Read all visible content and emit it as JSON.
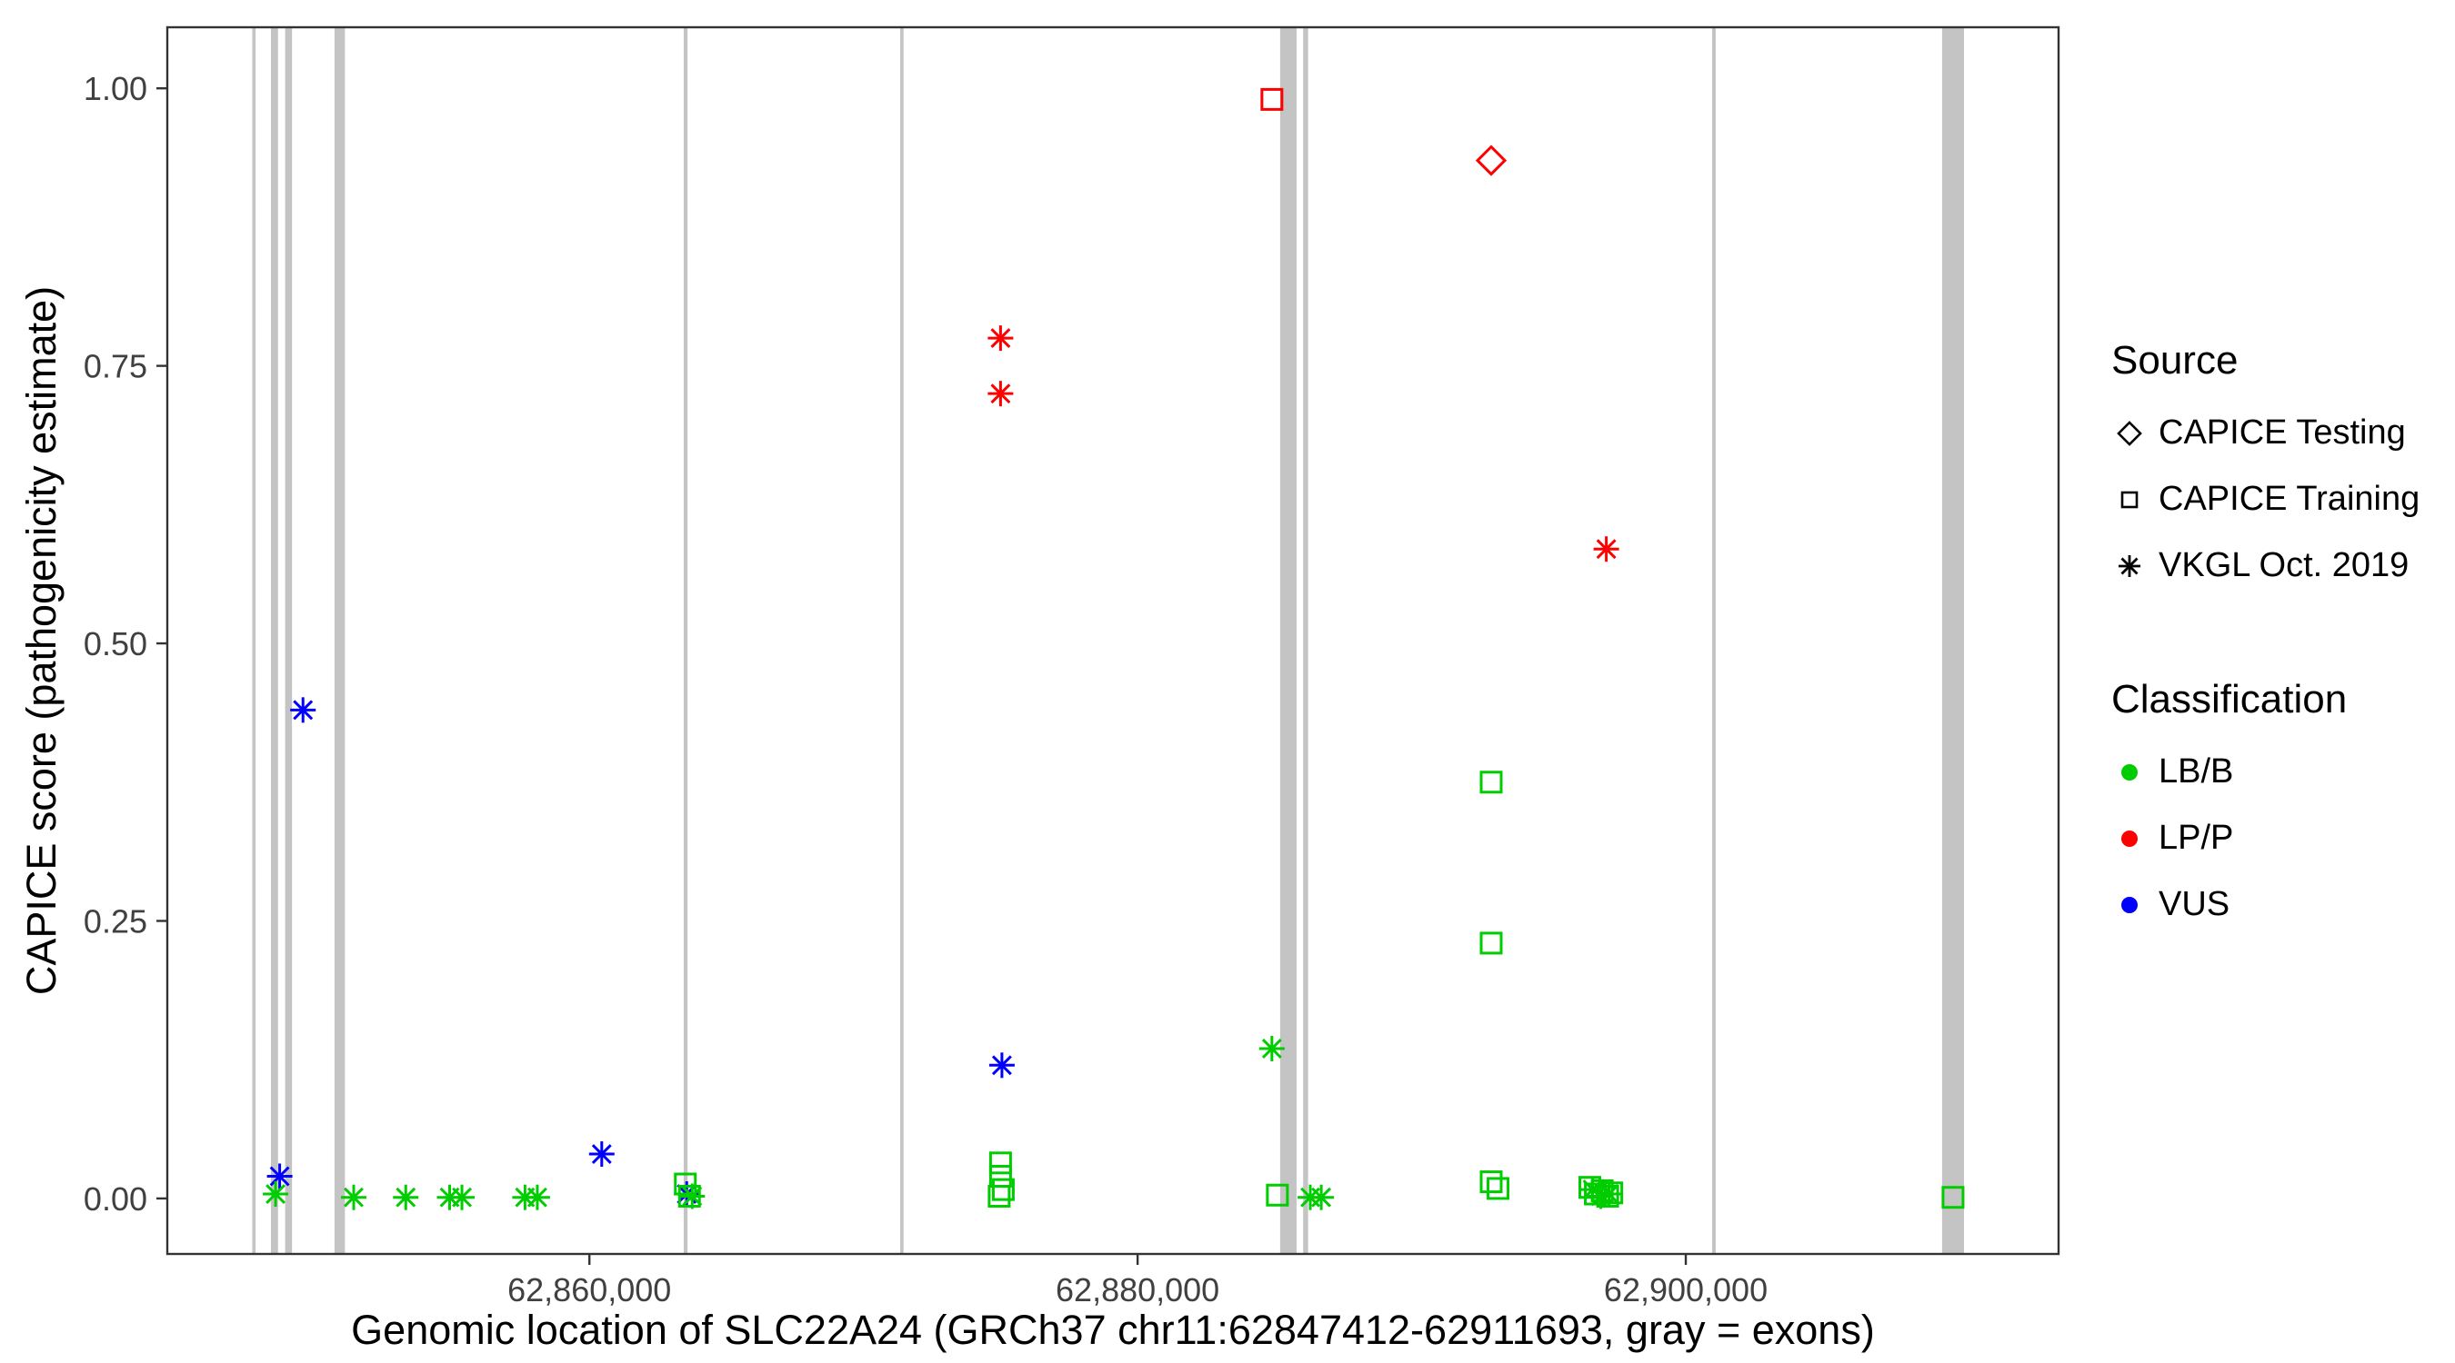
{
  "figure": {
    "xlabel": "Genomic location of SLC22A24 (GRCh37 chr11:62847412-62911693, gray = exons)",
    "ylabel": "CAPICE score (pathogenicity estimate)"
  },
  "legend": {
    "source": {
      "title": "Source",
      "items": [
        {
          "label": "CAPICE Testing",
          "shape": "diamond"
        },
        {
          "label": "CAPICE Training",
          "shape": "square"
        },
        {
          "label": "VKGL Oct. 2019",
          "shape": "asterisk"
        }
      ]
    },
    "classification": {
      "title": "Classification",
      "items": [
        {
          "label": "LB/B",
          "color_key": "lbb"
        },
        {
          "label": "LP/P",
          "color_key": "lpp"
        },
        {
          "label": "VUS",
          "color_key": "vus"
        }
      ]
    }
  },
  "chart_data": {
    "type": "scatter",
    "title": "",
    "xlabel": "Genomic location of SLC22A24 (GRCh37 chr11:62847412-62911693, gray = exons)",
    "ylabel": "CAPICE score (pathogenicity estimate)",
    "gene_region": {
      "gene": "SLC22A24",
      "assembly": "GRCh37",
      "chromosome": "chr11",
      "start": 62847412,
      "end": 62911693,
      "note": "gray = exons"
    },
    "x_domain": [
      62844600,
      62913600
    ],
    "y_domain": [
      -0.05,
      1.055
    ],
    "x_ticks": [
      {
        "value": 62860000,
        "label": "62,860,000"
      },
      {
        "value": 62880000,
        "label": "62,880,000"
      },
      {
        "value": 62900000,
        "label": "62,900,000"
      }
    ],
    "y_ticks": [
      {
        "value": 0.0,
        "label": "0.00"
      },
      {
        "value": 0.25,
        "label": "0.25"
      },
      {
        "value": 0.5,
        "label": "0.50"
      },
      {
        "value": 0.75,
        "label": "0.75"
      },
      {
        "value": 1.0,
        "label": "1.00"
      }
    ],
    "legend_position": "right",
    "grid": false,
    "exon_color": "#C4C4C4",
    "colors": {
      "lbb": "#00CD00",
      "lpp": "#FF0000",
      "vus": "#0000FF"
    },
    "shapes": {
      "testing": "diamond",
      "training": "square",
      "vkgl": "asterisk"
    },
    "source_labels": {
      "testing": "CAPICE Testing",
      "training": "CAPICE Training",
      "vkgl": "VKGL Oct. 2019"
    },
    "class_labels": {
      "lbb": "LB/B",
      "lpp": "LP/P",
      "vus": "VUS"
    },
    "exons": [
      {
        "start": 62847700,
        "end": 62847820
      },
      {
        "start": 62848380,
        "end": 62848640
      },
      {
        "start": 62848900,
        "end": 62849150
      },
      {
        "start": 62850700,
        "end": 62851080
      },
      {
        "start": 62863440,
        "end": 62863580
      },
      {
        "start": 62871340,
        "end": 62871460
      },
      {
        "start": 62885200,
        "end": 62885800
      },
      {
        "start": 62886040,
        "end": 62886220
      },
      {
        "start": 62900960,
        "end": 62901090
      },
      {
        "start": 62909350,
        "end": 62910150
      }
    ],
    "points": [
      {
        "x": 62848700,
        "y": 0.02,
        "source": "vkgl",
        "class": "vus"
      },
      {
        "x": 62849550,
        "y": 0.44,
        "source": "vkgl",
        "class": "vus"
      },
      {
        "x": 62860450,
        "y": 0.04,
        "source": "vkgl",
        "class": "vus"
      },
      {
        "x": 62875050,
        "y": 0.12,
        "source": "vkgl",
        "class": "vus"
      },
      {
        "x": 62863550,
        "y": 0.004,
        "source": "vkgl",
        "class": "vus"
      },
      {
        "x": 62875000,
        "y": 0.775,
        "source": "vkgl",
        "class": "lpp"
      },
      {
        "x": 62875000,
        "y": 0.725,
        "source": "vkgl",
        "class": "lpp"
      },
      {
        "x": 62897100,
        "y": 0.585,
        "source": "vkgl",
        "class": "lpp"
      },
      {
        "x": 62848550,
        "y": 0.004,
        "source": "vkgl",
        "class": "lbb"
      },
      {
        "x": 62851400,
        "y": 0.001,
        "source": "vkgl",
        "class": "lbb"
      },
      {
        "x": 62853300,
        "y": 0.001,
        "source": "vkgl",
        "class": "lbb"
      },
      {
        "x": 62854900,
        "y": 0.001,
        "source": "vkgl",
        "class": "lbb"
      },
      {
        "x": 62855350,
        "y": 0.001,
        "source": "vkgl",
        "class": "lbb"
      },
      {
        "x": 62857650,
        "y": 0.001,
        "source": "vkgl",
        "class": "lbb"
      },
      {
        "x": 62858100,
        "y": 0.001,
        "source": "vkgl",
        "class": "lbb"
      },
      {
        "x": 62863750,
        "y": 0.002,
        "source": "vkgl",
        "class": "lbb"
      },
      {
        "x": 62884900,
        "y": 0.135,
        "source": "vkgl",
        "class": "lbb"
      },
      {
        "x": 62886300,
        "y": 0.001,
        "source": "vkgl",
        "class": "lbb"
      },
      {
        "x": 62886700,
        "y": 0.001,
        "source": "vkgl",
        "class": "lbb"
      },
      {
        "x": 62896600,
        "y": 0.008,
        "source": "vkgl",
        "class": "lbb"
      },
      {
        "x": 62896900,
        "y": 0.002,
        "source": "vkgl",
        "class": "lbb"
      },
      {
        "x": 62897200,
        "y": 0.004,
        "source": "vkgl",
        "class": "lbb"
      },
      {
        "x": 62884900,
        "y": 0.99,
        "source": "training",
        "class": "lpp"
      },
      {
        "x": 62875000,
        "y": 0.032,
        "source": "training",
        "class": "lbb"
      },
      {
        "x": 62875000,
        "y": 0.02,
        "source": "training",
        "class": "lbb"
      },
      {
        "x": 62875100,
        "y": 0.008,
        "source": "training",
        "class": "lbb"
      },
      {
        "x": 62874950,
        "y": 0.002,
        "source": "training",
        "class": "lbb"
      },
      {
        "x": 62885100,
        "y": 0.003,
        "source": "training",
        "class": "lbb"
      },
      {
        "x": 62892900,
        "y": 0.375,
        "source": "training",
        "class": "lbb"
      },
      {
        "x": 62892900,
        "y": 0.23,
        "source": "training",
        "class": "lbb"
      },
      {
        "x": 62892900,
        "y": 0.015,
        "source": "training",
        "class": "lbb"
      },
      {
        "x": 62893150,
        "y": 0.009,
        "source": "training",
        "class": "lbb"
      },
      {
        "x": 62863500,
        "y": 0.013,
        "source": "training",
        "class": "lbb"
      },
      {
        "x": 62863650,
        "y": 0.002,
        "source": "training",
        "class": "lbb"
      },
      {
        "x": 62896500,
        "y": 0.01,
        "source": "training",
        "class": "lbb"
      },
      {
        "x": 62896700,
        "y": 0.004,
        "source": "training",
        "class": "lbb"
      },
      {
        "x": 62896950,
        "y": 0.007,
        "source": "training",
        "class": "lbb"
      },
      {
        "x": 62897150,
        "y": 0.002,
        "source": "training",
        "class": "lbb"
      },
      {
        "x": 62897300,
        "y": 0.005,
        "source": "training",
        "class": "lbb"
      },
      {
        "x": 62909750,
        "y": 0.001,
        "source": "training",
        "class": "lbb"
      },
      {
        "x": 62892900,
        "y": 0.935,
        "source": "testing",
        "class": "lpp"
      }
    ]
  }
}
